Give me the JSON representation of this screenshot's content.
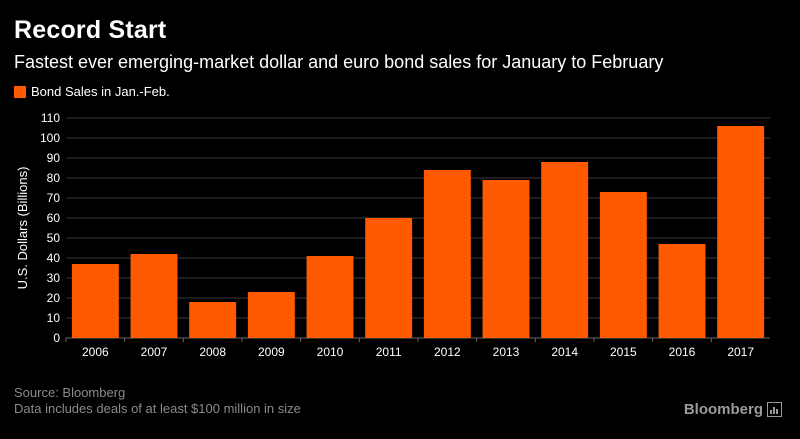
{
  "title": "Record Start",
  "subtitle": "Fastest ever emerging-market dollar and euro bond sales for January to February",
  "legend": {
    "label": "Bond Sales in Jan.-Feb.",
    "color": "#ff5a00"
  },
  "footer": {
    "source": "Source: Bloomberg",
    "note": "Data includes deals of at least $100 million in size"
  },
  "brand": {
    "name": "Bloomberg",
    "icon": "bloomberg-chart-icon"
  },
  "colors": {
    "background": "#000000",
    "bar": "#ff5a00",
    "grid": "#3a3a3a",
    "text": "#ffffff",
    "muted": "#8a8a8a"
  },
  "chart_data": {
    "type": "bar",
    "title": "Record Start",
    "subtitle": "Fastest ever emerging-market dollar and euro bond sales for January to February",
    "xlabel": "",
    "ylabel": "U.S. Dollars (Billions)",
    "ylim": [
      0,
      110
    ],
    "yticks": [
      0,
      10,
      20,
      30,
      40,
      50,
      60,
      70,
      80,
      90,
      100,
      110
    ],
    "grid": true,
    "legend_position": "top-left",
    "categories": [
      "2006",
      "2007",
      "2008",
      "2009",
      "2010",
      "2011",
      "2012",
      "2013",
      "2014",
      "2015",
      "2016",
      "2017"
    ],
    "series": [
      {
        "name": "Bond Sales in Jan.-Feb.",
        "values": [
          37,
          42,
          18,
          23,
          41,
          60,
          84,
          79,
          88,
          73,
          47,
          106
        ]
      }
    ]
  }
}
